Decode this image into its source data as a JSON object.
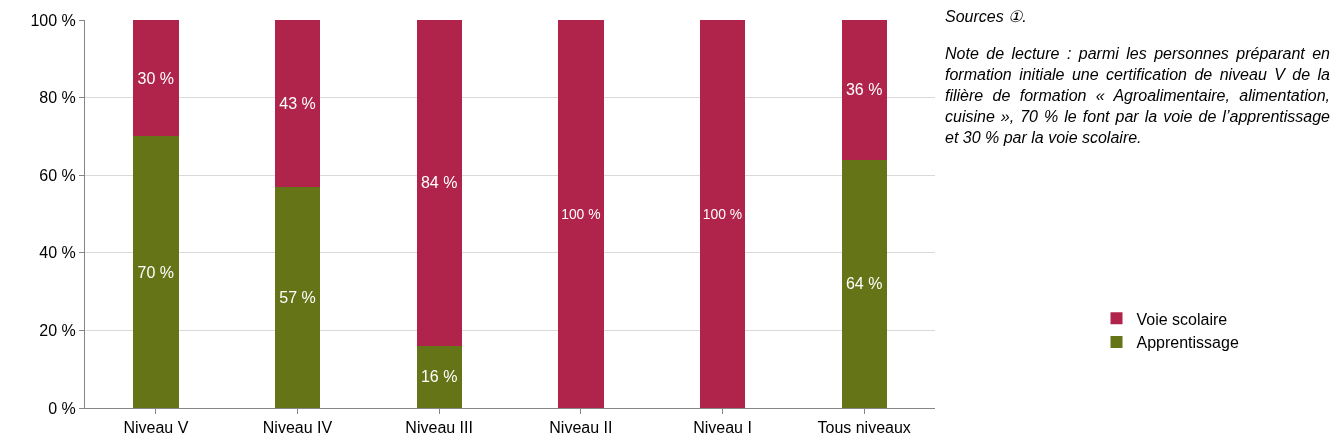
{
  "chart_data": {
    "type": "bar",
    "stacked": true,
    "categories": [
      "Niveau V",
      "Niveau IV",
      "Niveau III",
      "Niveau II",
      "Niveau I",
      "Tous niveaux"
    ],
    "series": [
      {
        "name": "Apprentissage",
        "color": "#647417",
        "values": [
          70,
          57,
          16,
          0,
          0,
          64
        ],
        "value_labels": [
          "70 %",
          "57 %",
          "16 %",
          null,
          null,
          "64 %"
        ]
      },
      {
        "name": "Voie scolaire",
        "color": "#b0244b",
        "values": [
          30,
          43,
          84,
          100,
          100,
          36
        ],
        "value_labels": [
          "30 %",
          "43 %",
          "84 %",
          "100 %",
          "100 %",
          "36 %"
        ]
      }
    ],
    "ylim": [
      0,
      100
    ],
    "yticks": [
      {
        "value": 0,
        "label": "0 %"
      },
      {
        "value": 20,
        "label": "20 %"
      },
      {
        "value": 40,
        "label": "40 %"
      },
      {
        "value": 60,
        "label": "60 %"
      },
      {
        "value": 80,
        "label": "80 %"
      },
      {
        "value": 100,
        "label": "100 %"
      }
    ],
    "grid": "y",
    "legend": "right",
    "annotations": [
      "Sources ①.",
      "Note de lecture : parmi les personnes préparant en formation initiale une certification de niveau V de la filière de formation « Agroalimentaire, alimentation, cuisine », 70 % le font par la voie de l’apprentissage et 30 % par la voie scolaire."
    ]
  }
}
